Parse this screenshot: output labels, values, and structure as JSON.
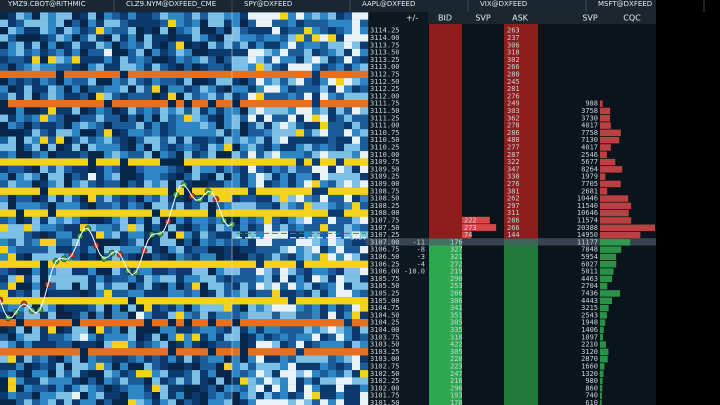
{
  "tabs": [
    "YMZ9.CBOT@RITHMIC",
    "CLZ9.NYM@DXFEED_CME",
    "SPY@DXFEED",
    "AAPL@DXFEED",
    "VIX@DXFEED",
    "MSFT@DXFEED"
  ],
  "dom": {
    "headers": [
      "+/-",
      "BID",
      "SVP",
      "ASK",
      "SVP",
      "CQC"
    ],
    "prices": [
      "3114.25",
      "3114.00",
      "3113.75",
      "3113.50",
      "3113.25",
      "3113.00",
      "3112.75",
      "3112.50",
      "3112.25",
      "3112.00",
      "3111.75",
      "3111.50",
      "3111.25",
      "3111.00",
      "3110.75",
      "3110.50",
      "3110.25",
      "3110.00",
      "3109.75",
      "3109.50",
      "3109.25",
      "3109.00",
      "3108.75",
      "3108.50",
      "3108.25",
      "3108.00",
      "3107.75",
      "3107.50",
      "3107.25",
      "3107.00",
      "3106.75",
      "3106.50",
      "3106.25",
      "3106.00",
      "3105.75",
      "3105.50",
      "3105.25",
      "3105.00",
      "3104.75",
      "3104.50",
      "3104.25",
      "3104.00",
      "3103.75",
      "3103.50",
      "3103.25",
      "3103.00",
      "3102.75",
      "3102.50",
      "3102.25",
      "3102.00",
      "3101.75",
      "3101.50"
    ],
    "ask_sizes": [
      263,
      237,
      306,
      318,
      302,
      266,
      280,
      245,
      281,
      276,
      249,
      303,
      362,
      278,
      286,
      480,
      277,
      287,
      322,
      347,
      338,
      276,
      381,
      262,
      297,
      311,
      286,
      266,
      144
    ],
    "bid_sizes": [
      176,
      327,
      321,
      272,
      219,
      290,
      253,
      266,
      306,
      341,
      351,
      305,
      335,
      318,
      422,
      305,
      220,
      223,
      247,
      216,
      296,
      193,
      170
    ],
    "trades_at_bid": [
      222,
      273,
      74
    ],
    "delta": [
      "-11",
      "-8",
      "-3",
      "-4",
      "-10.0"
    ],
    "last_trade_label": "1(3)",
    "ask_color": "#d94848",
    "bid_color": "#2ea84e",
    "volume_profile": [
      null,
      null,
      null,
      null,
      null,
      null,
      null,
      null,
      null,
      null,
      988,
      3758,
      3730,
      4017,
      7758,
      7130,
      4017,
      2546,
      5677,
      8264,
      1979,
      7705,
      2681,
      10446,
      11540,
      10646,
      11574,
      20388,
      14950,
      11177,
      7848,
      5954,
      6027,
      5011,
      4463,
      2704,
      7436,
      4443,
      3215,
      2543,
      1948,
      1406,
      1097,
      2210,
      3120,
      2870,
      1660,
      1320,
      980,
      860,
      740,
      610
    ]
  }
}
